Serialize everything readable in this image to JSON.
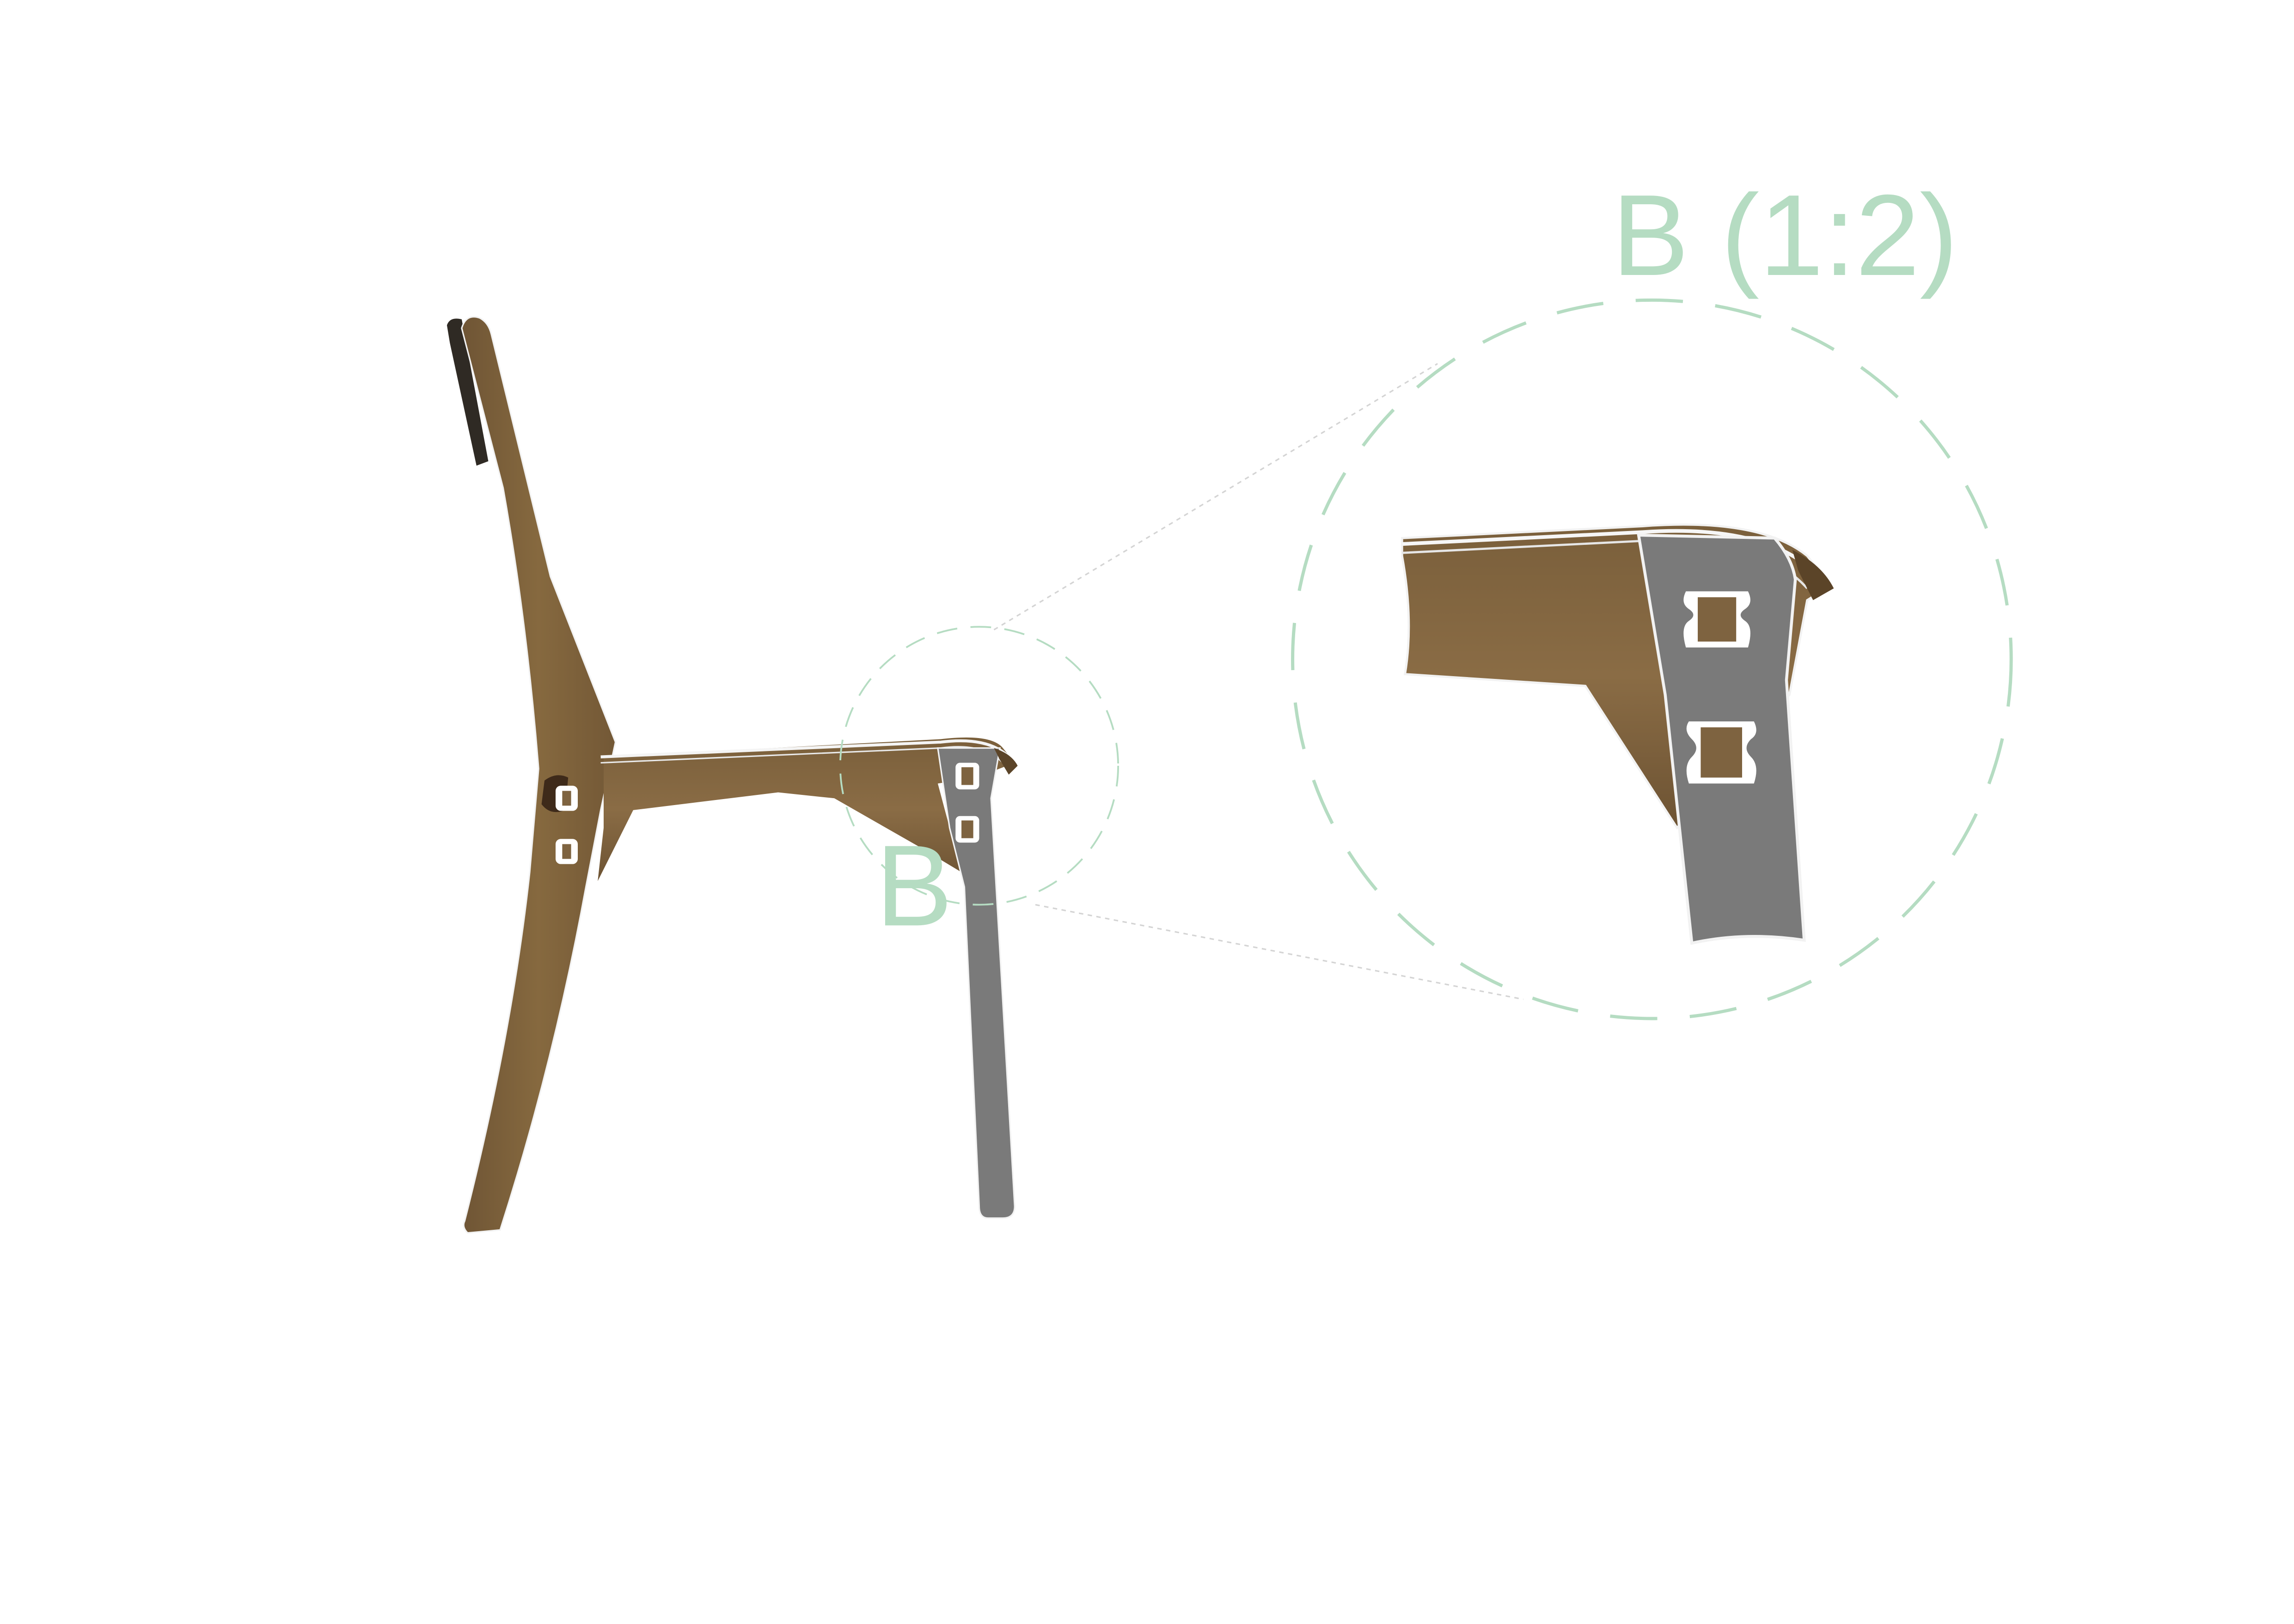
{
  "detail": {
    "marker_label": "B",
    "title": "B (1:2)"
  },
  "colors": {
    "background": "#ffffff",
    "wood": "#7e6340",
    "wood_dark": "#5b4428",
    "wood_light": "#9a7c55",
    "steel": "#7a7a7a",
    "steel_dark": "#5e5e5e",
    "annotation": "#b5dcc2",
    "leader": "#d4d4d4",
    "edge": "#f2f2f2",
    "dark_pad": "#2f2a24"
  },
  "icons": {
    "chair": "chair-side-view-icon",
    "detail": "joint-detail-icon"
  }
}
